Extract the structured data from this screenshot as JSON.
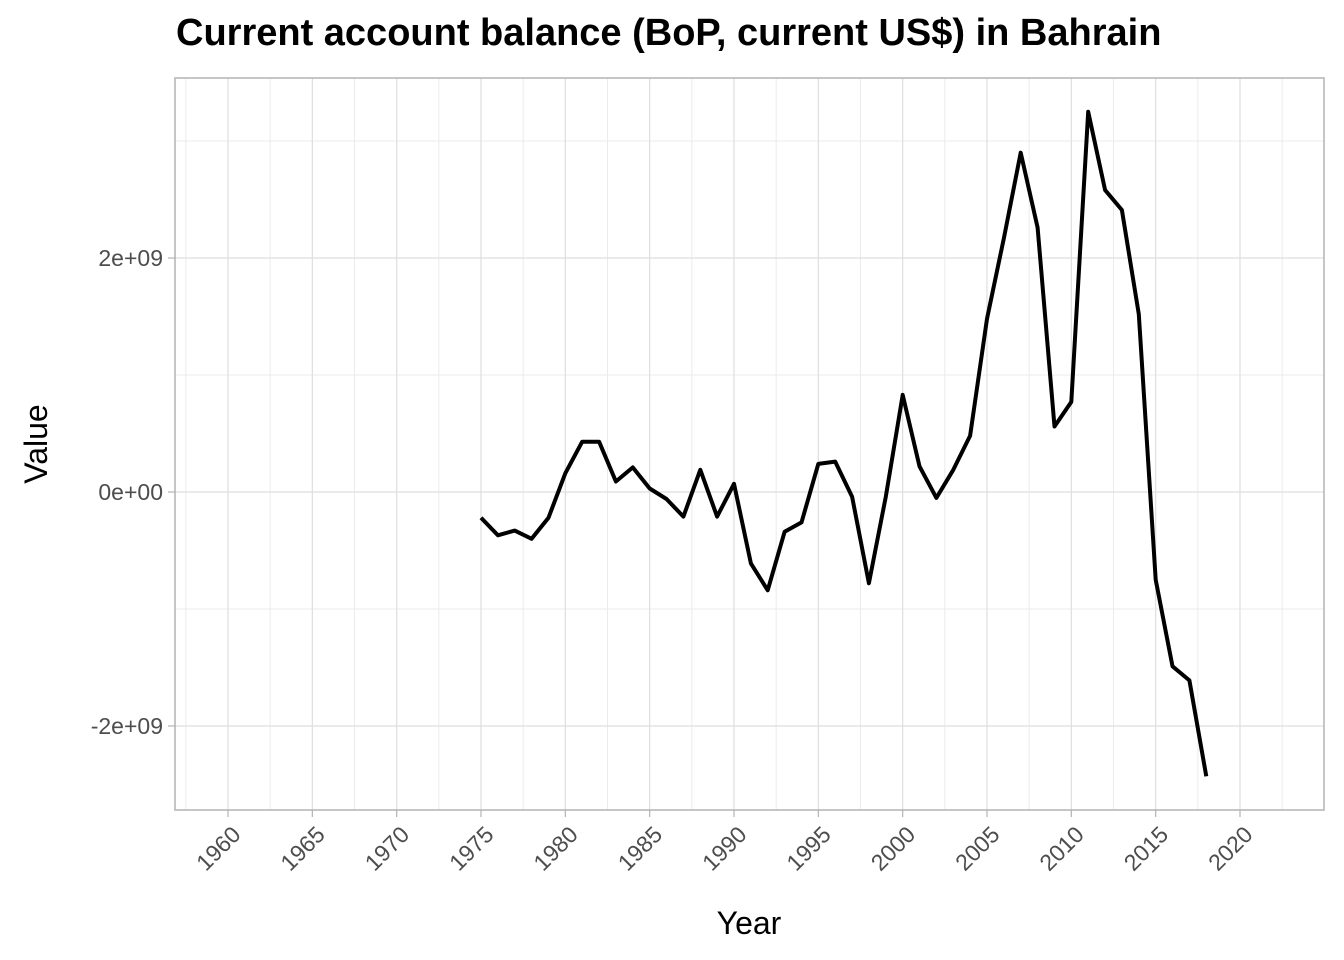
{
  "chart_data": {
    "type": "line",
    "title": "Current account balance (BoP, current US$) in Bahrain",
    "xlabel": "Year",
    "ylabel": "Value",
    "xlim": [
      1956.85,
      1962.15
    ],
    "ylim": [
      -2700000000,
      3550000000
    ],
    "x_ticks": [
      1960,
      1965,
      1970,
      1975,
      1980,
      1985,
      1990,
      1995,
      2000,
      2005,
      2010,
      2015,
      2020
    ],
    "x_tick_labels": [
      "1960",
      "1965",
      "1970",
      "1975",
      "1980",
      "1985",
      "1990",
      "1995",
      "2000",
      "2005",
      "2010",
      "2015",
      "2020"
    ],
    "y_ticks": [
      -2000000000,
      0,
      2000000000
    ],
    "y_tick_labels": [
      "-2e+09",
      "0e+00",
      "2e+09"
    ],
    "grid": true,
    "line_color": "#000000",
    "series": [
      {
        "x": [
          1975,
          1976,
          1977,
          1978,
          1979,
          1980,
          1981,
          1982,
          1983,
          1984,
          1985,
          1986,
          1987,
          1988,
          1989,
          1990,
          1991,
          1992,
          1993,
          1994,
          1995,
          1996,
          1997,
          1998,
          1999,
          2000,
          2001,
          2002,
          2003,
          2004,
          2005,
          2006,
          2007,
          2008,
          2009,
          2010,
          2011,
          2012,
          2013,
          2014,
          2015,
          2016,
          2017,
          2018
        ],
        "values": [
          -220000000,
          -370000000,
          -330000000,
          -400000000,
          -220000000,
          160000000,
          430000000,
          430000000,
          90000000,
          210000000,
          30000000,
          -60000000,
          -210000000,
          190000000,
          -210000000,
          70000000,
          -610000000,
          -840000000,
          -340000000,
          -260000000,
          240000000,
          260000000,
          -40000000,
          -780000000,
          -40000000,
          830000000,
          220000000,
          -50000000,
          190000000,
          480000000,
          1480000000,
          2170000000,
          2900000000,
          2260000000,
          560000000,
          770000000,
          3250000000,
          2580000000,
          2410000000,
          1520000000,
          -750000000,
          -1490000000,
          -1610000000,
          -2430000000
        ]
      }
    ]
  }
}
